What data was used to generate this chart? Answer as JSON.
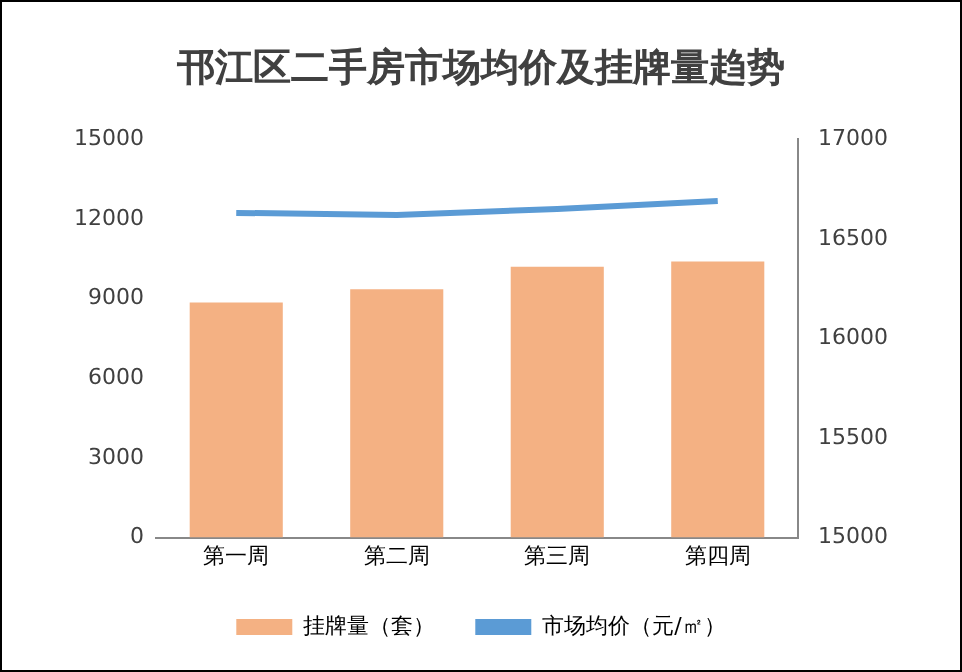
{
  "chart_data": {
    "type": "bar",
    "title": "邗江区二手房市场均价及挂牌量趋势",
    "categories": [
      "第一周",
      "第二周",
      "第三周",
      "第四周"
    ],
    "series": [
      {
        "name": "挂牌量（套）",
        "color": "#f4b183",
        "values": [
          8850,
          9350,
          10200,
          10400
        ]
      },
      {
        "name": "市场均价（元/㎡）",
        "type": "line",
        "axis": "y2",
        "color": "#5b9bd5",
        "values": [
          16630,
          16620,
          16650,
          16690
        ],
        "marker": "none"
      }
    ],
    "ylim": [
      0,
      15000
    ],
    "yticks": [
      0,
      3000,
      6000,
      9000,
      12000,
      15000
    ],
    "y2lim": [
      15000,
      17000
    ],
    "y2ticks": [
      15000,
      15500,
      16000,
      16500,
      17000
    ],
    "grid": false,
    "legend": "bottom"
  }
}
